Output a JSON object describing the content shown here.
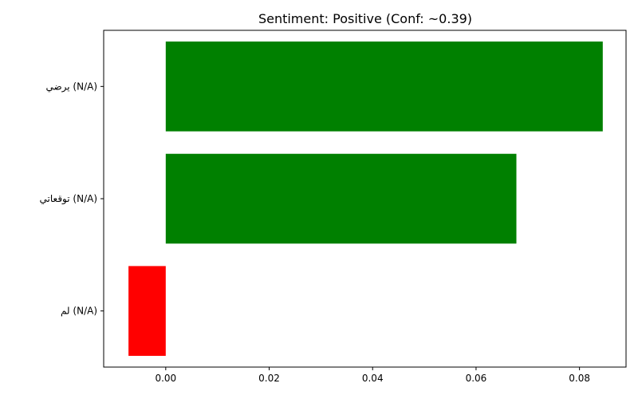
{
  "chart_data": {
    "type": "bar",
    "orientation": "horizontal",
    "title": "Sentiment: Positive (Conf: ~0.39)",
    "xlabel": "",
    "ylabel": "",
    "categories": [
      "يرضي (N/A)",
      "توقعاتي (N/A)",
      "لم (N/A)"
    ],
    "values": [
      0.0845,
      0.0678,
      -0.0072
    ],
    "bar_colors": [
      "#008000",
      "#008000",
      "#ff0000"
    ],
    "xlim": [
      -0.012,
      0.089
    ],
    "x_ticks": [
      0.0,
      0.02,
      0.04,
      0.06,
      0.08
    ],
    "x_tick_labels": [
      "0.00",
      "0.02",
      "0.04",
      "0.06",
      "0.08"
    ],
    "grid": false,
    "legend": "none"
  }
}
